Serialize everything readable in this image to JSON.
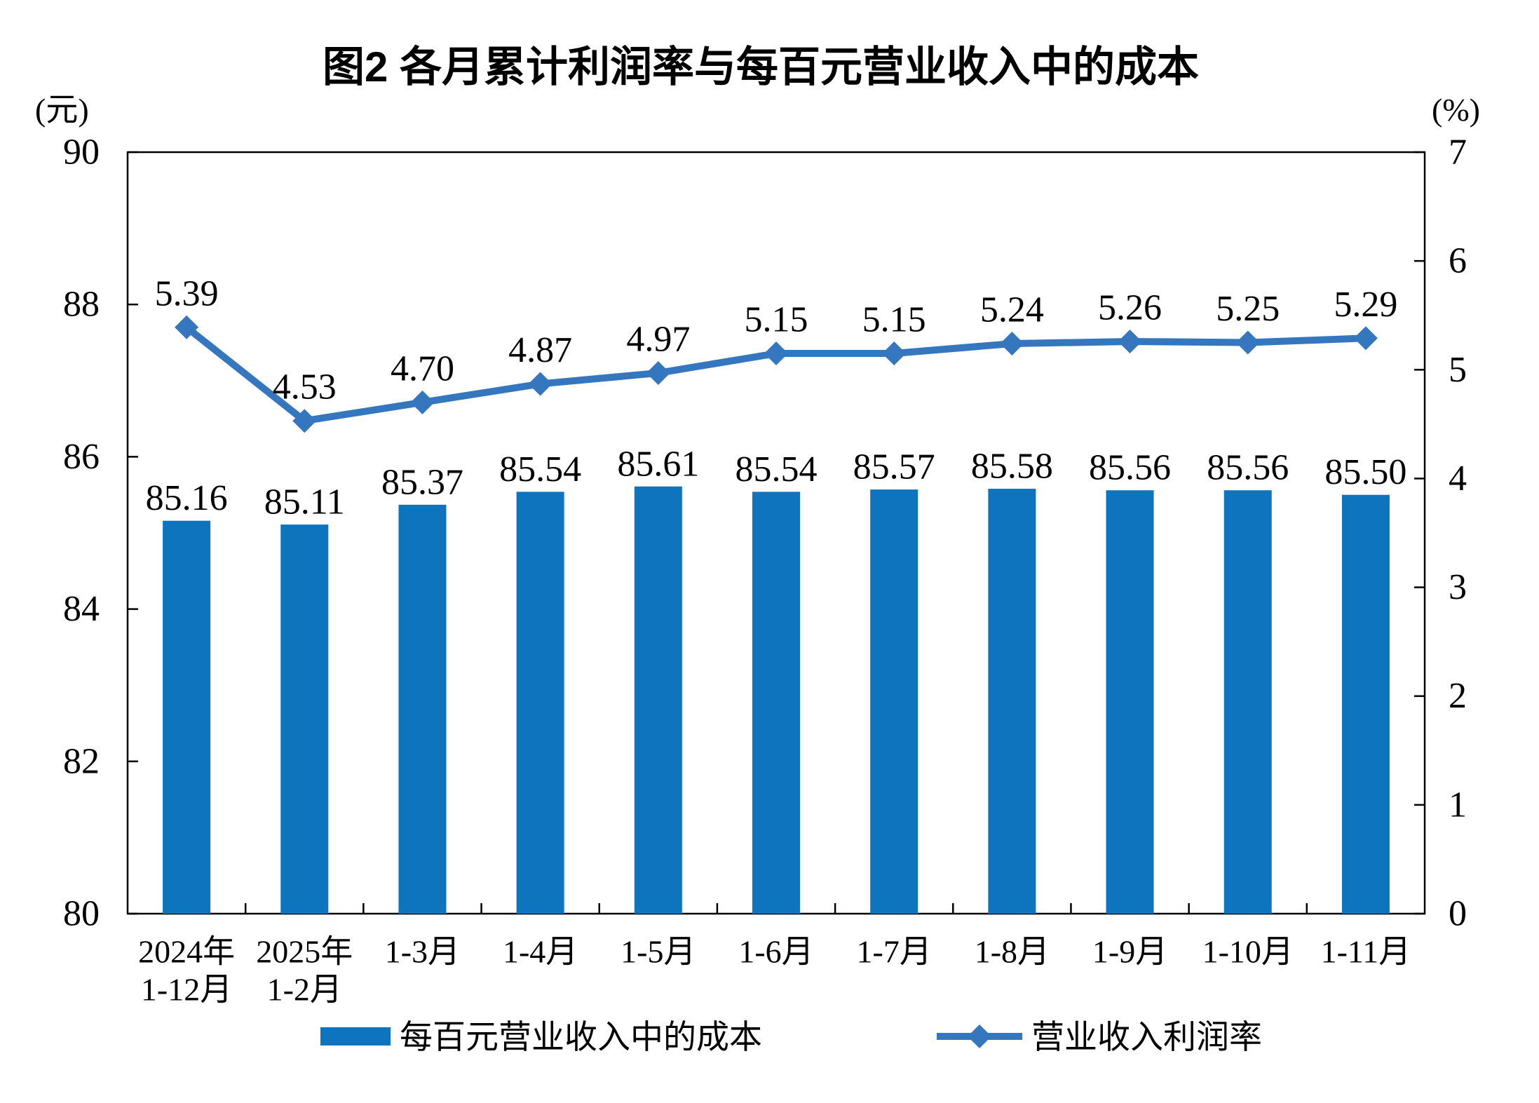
{
  "chart_data": {
    "type": "combo",
    "title": "图2 各月累计利润率与每百元营业收入中的成本",
    "categories": [
      [
        "2024年",
        "1-12月"
      ],
      [
        "2025年",
        "1-2月"
      ],
      [
        "1-3月"
      ],
      [
        "1-4月"
      ],
      [
        "1-5月"
      ],
      [
        "1-6月"
      ],
      [
        "1-7月"
      ],
      [
        "1-8月"
      ],
      [
        "1-9月"
      ],
      [
        "1-10月"
      ],
      [
        "1-11月"
      ]
    ],
    "series": [
      {
        "name": "每百元营业收入中的成本",
        "type": "bar",
        "axis": "left",
        "color": "#0E74BD",
        "values": [
          85.16,
          85.11,
          85.37,
          85.54,
          85.61,
          85.54,
          85.57,
          85.58,
          85.56,
          85.56,
          85.5
        ]
      },
      {
        "name": "营业收入利润率",
        "type": "line",
        "axis": "right",
        "color": "#3577BE",
        "marker": "diamond",
        "values": [
          5.39,
          4.53,
          4.7,
          4.87,
          4.97,
          5.15,
          5.15,
          5.24,
          5.26,
          5.25,
          5.29
        ]
      }
    ],
    "axes": {
      "left": {
        "unit": "(元)",
        "min": 80,
        "max": 90,
        "ticks": [
          90,
          88,
          86,
          84,
          82,
          80
        ]
      },
      "right": {
        "unit": "(%)",
        "min": 0,
        "max": 7,
        "ticks": [
          7,
          6,
          5,
          4,
          3,
          2,
          1,
          0
        ]
      }
    },
    "grid": false,
    "data_labels": true,
    "legend_position": "bottom",
    "axis_color": "#000000"
  }
}
